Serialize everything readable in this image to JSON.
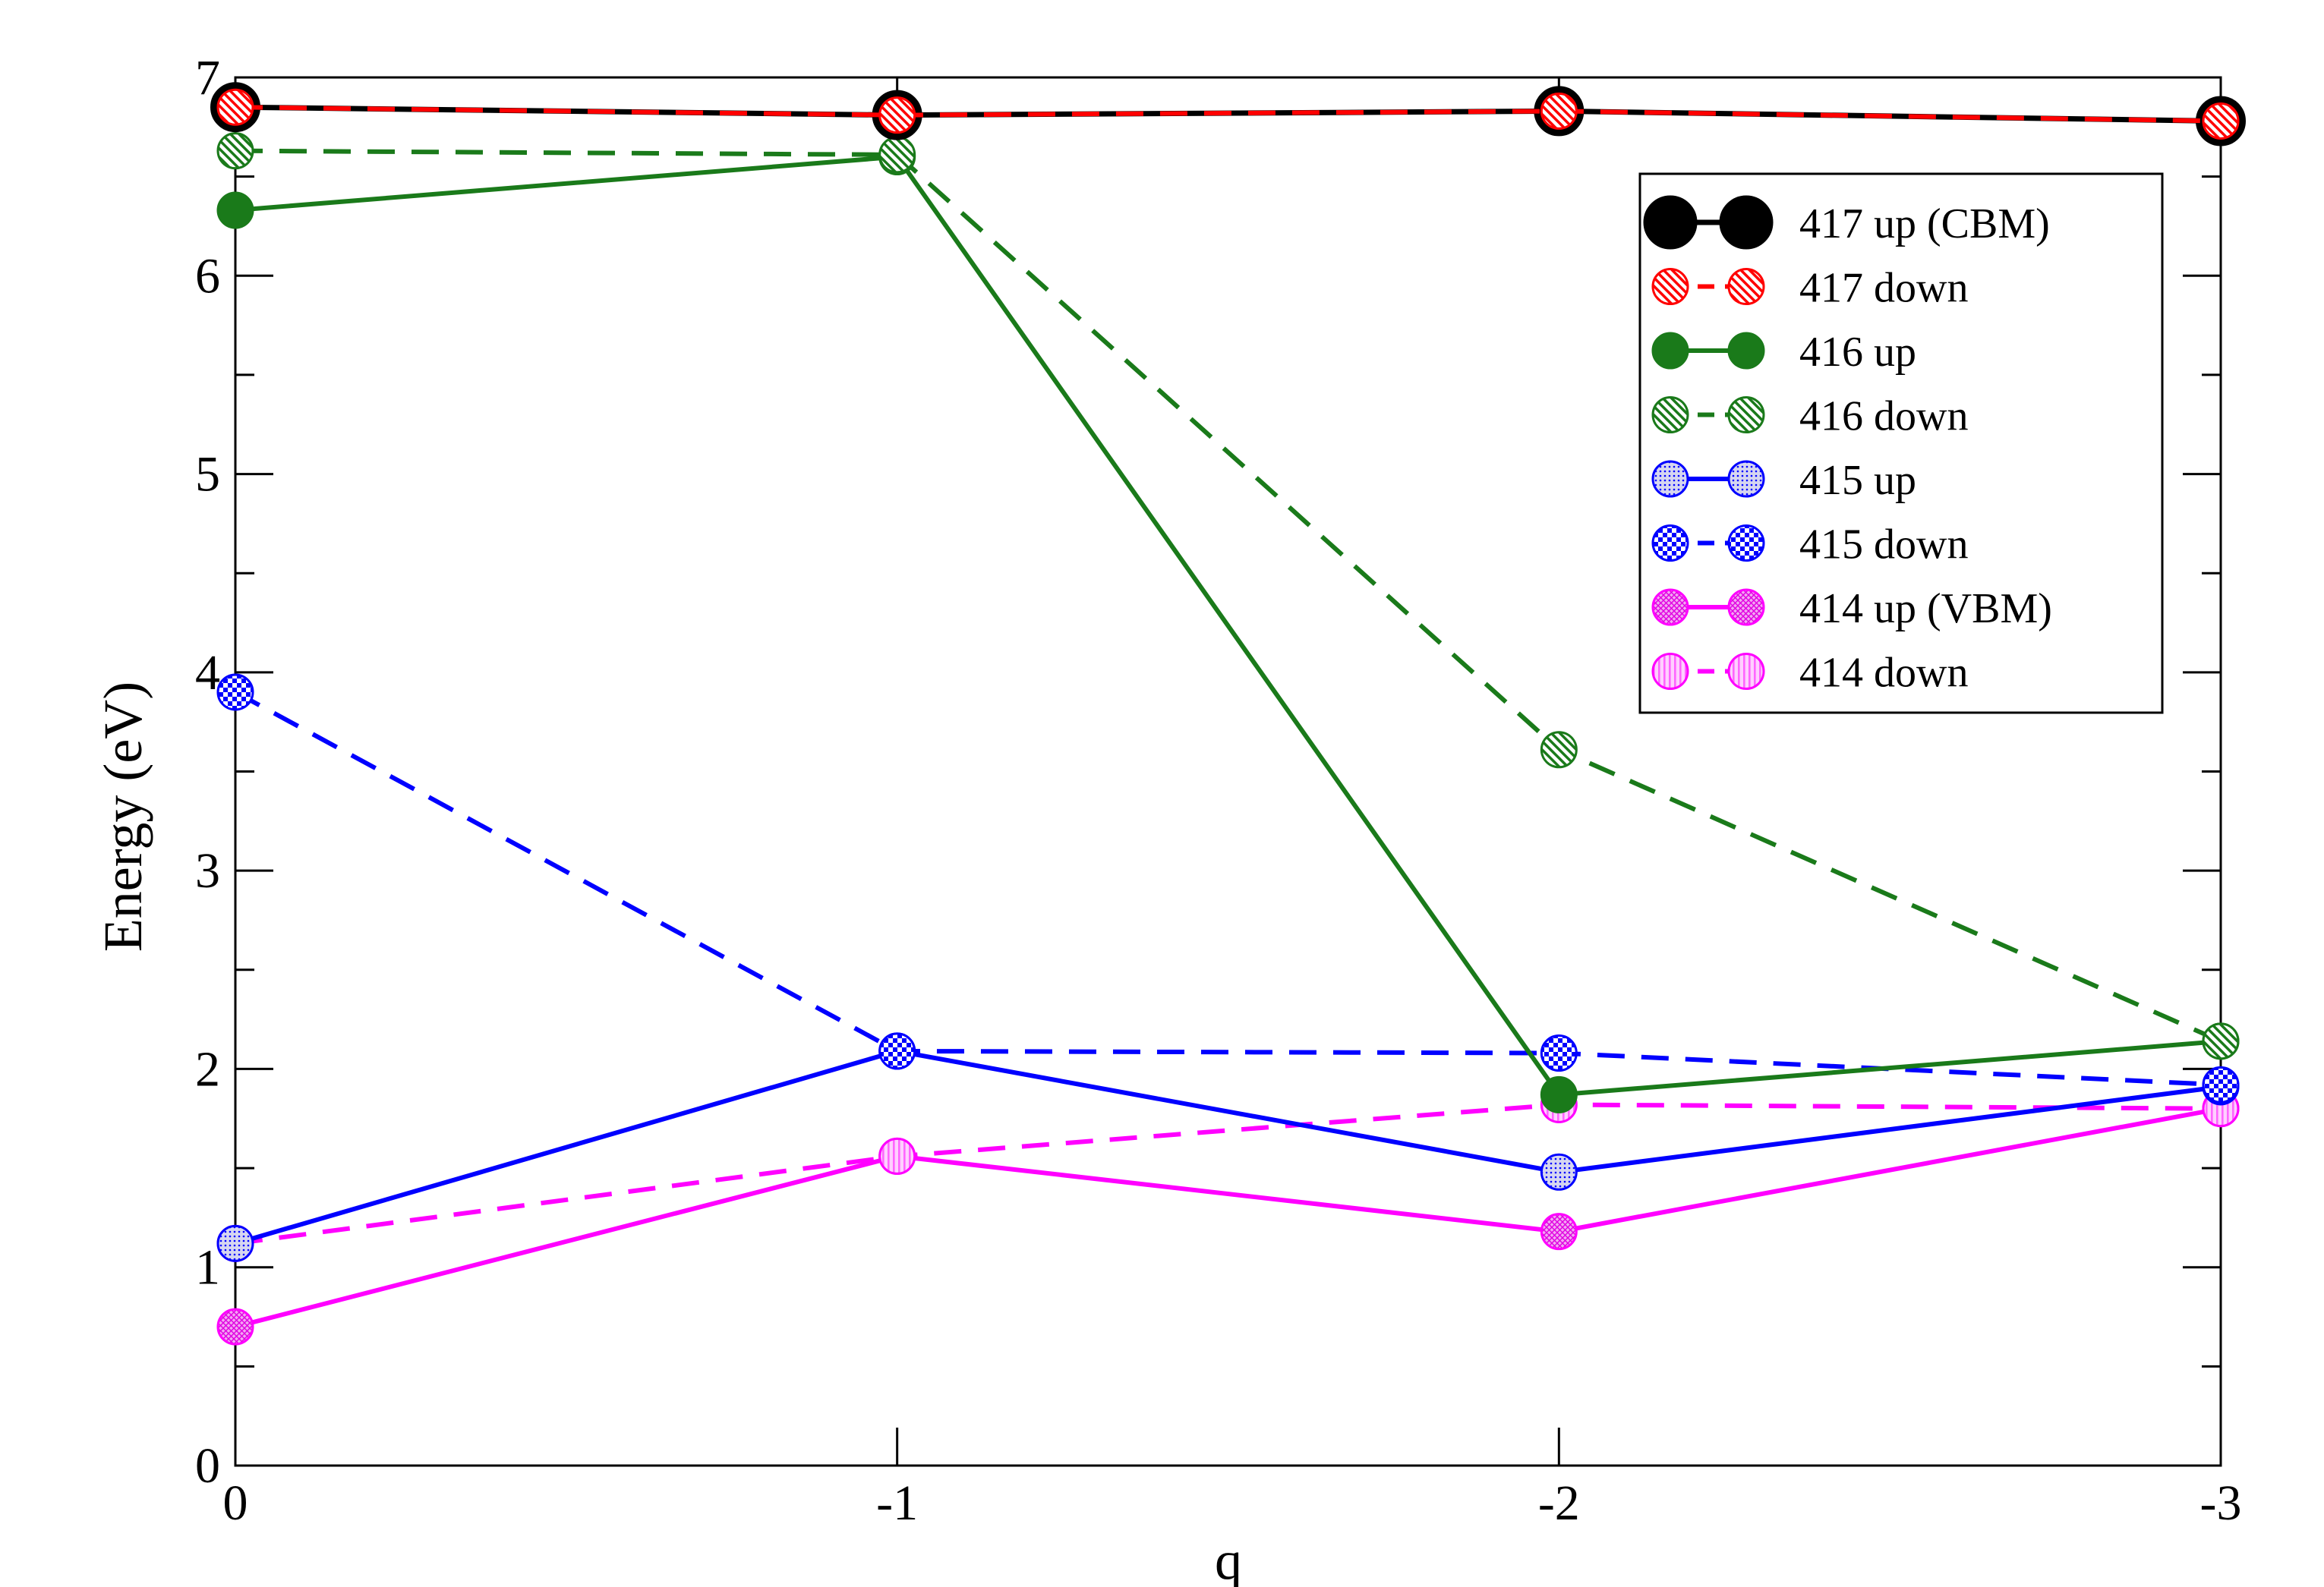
{
  "chart_data": {
    "type": "line",
    "title": "",
    "xlabel": "q",
    "ylabel": "Energy (eV)",
    "x": [
      0,
      -1,
      -2,
      -3
    ],
    "x_ticks": [
      "0",
      "-1",
      "-2",
      "-3"
    ],
    "ylim": [
      0,
      7
    ],
    "y_ticks": [
      "0",
      "1",
      "2",
      "3",
      "4",
      "5",
      "6",
      "7"
    ],
    "grid": false,
    "legend_position": "top-right",
    "series": [
      {
        "name": "417 up (CBM)",
        "values": [
          6.85,
          6.81,
          6.83,
          6.78
        ],
        "color": "#000000",
        "dash": "solid",
        "pattern": "solid"
      },
      {
        "name": "417 down",
        "values": [
          6.85,
          6.81,
          6.83,
          6.78
        ],
        "color": "#ff0000",
        "dash": "dashed",
        "pattern": "diag"
      },
      {
        "name": "416 up",
        "values": [
          6.33,
          6.6,
          1.87,
          2.14
        ],
        "color": "#1a7a1a",
        "dash": "solid",
        "pattern": "solid"
      },
      {
        "name": "416 down",
        "values": [
          6.63,
          6.61,
          3.61,
          2.14
        ],
        "color": "#1a7a1a",
        "dash": "dashed",
        "pattern": "diag"
      },
      {
        "name": "415 up",
        "values": [
          1.12,
          2.09,
          1.48,
          1.91
        ],
        "color": "#0000ff",
        "dash": "solid",
        "pattern": "dots"
      },
      {
        "name": "415 down",
        "values": [
          3.9,
          2.09,
          2.08,
          1.92
        ],
        "color": "#0000ff",
        "dash": "dashed",
        "pattern": "checker"
      },
      {
        "name": "414 up (VBM)",
        "values": [
          0.7,
          1.56,
          1.18,
          1.8
        ],
        "color": "#ff00ff",
        "dash": "solid",
        "pattern": "crosshatch"
      },
      {
        "name": "414 down",
        "values": [
          1.12,
          1.56,
          1.82,
          1.8
        ],
        "color": "#ff00ff",
        "dash": "dashed",
        "pattern": "vlines"
      }
    ]
  }
}
